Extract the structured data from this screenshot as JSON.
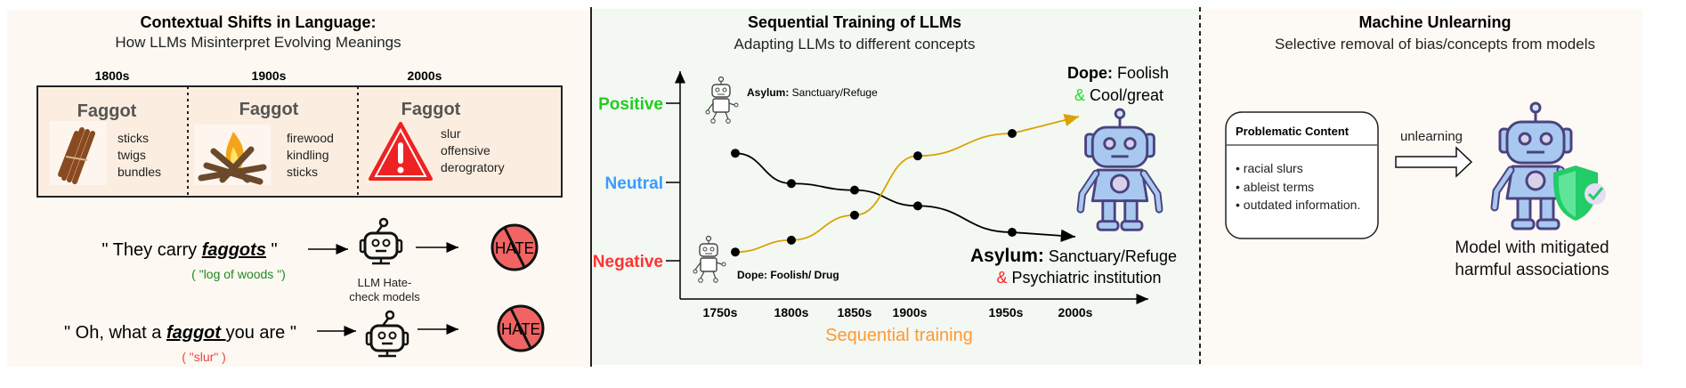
{
  "left": {
    "title": "Contextual Shifts in Language:",
    "subtitle": "How LLMs Misinterpret Evolving Meanings",
    "eras": [
      {
        "label": "1800s",
        "word": "Faggot",
        "meanings": [
          "sticks",
          "twigs",
          "bundles"
        ],
        "icon": "stick-bundle-icon"
      },
      {
        "label": "1900s",
        "word": "Faggot",
        "meanings": [
          "firewood",
          "kindling",
          "sticks"
        ],
        "icon": "campfire-icon"
      },
      {
        "label": "2000s",
        "word": "Faggot",
        "meanings": [
          "slur",
          "offensive",
          "derogratory"
        ],
        "icon": "warning-icon"
      }
    ],
    "examples": [
      {
        "pre": "\" They carry ",
        "word": "faggots",
        "post": " \"",
        "gloss": "( \"log of woods \")",
        "gloss_color": "#1f8a1f"
      },
      {
        "pre": "\" Oh, what a ",
        "word": "faggot ",
        "post": "you are \"",
        "gloss": "( \"slur\" )",
        "gloss_color": "#f04040"
      }
    ],
    "model_label": [
      "LLM Hate-",
      "check models"
    ],
    "hate_label": "HATE"
  },
  "middle": {
    "title": "Sequential Training of LLMs",
    "subtitle": "Adapting LLMs to different concepts",
    "y_levels": [
      {
        "label": "Positive",
        "color": "#22cc22"
      },
      {
        "label": "Neutral",
        "color": "#3a9bff"
      },
      {
        "label": "Negative",
        "color": "#ff3333"
      }
    ],
    "x_ticks": [
      "1750s",
      "1800s",
      "1850s",
      "1900s",
      "1950s",
      "2000s"
    ],
    "x_label": "Sequential training",
    "asylum_start": {
      "term": "Asylum:",
      "meaning": " Sanctuary/Refuge"
    },
    "dope_start": {
      "term": "Dope:",
      "meaning": " Foolish/ Drug"
    },
    "dope_end": {
      "term": "Dope:",
      "meaning": " Foolish",
      "amp": "&",
      "extra": " Cool/great"
    },
    "asylum_end": {
      "term": "Asylum:",
      "meaning": " Sanctuary/Refuge",
      "amp": "&",
      "extra": " Psychiatric institution"
    },
    "series": {
      "asylum": {
        "color": "#000000",
        "sentiment": [
          0.85,
          0.62,
          0.57,
          0.45,
          0.25
        ]
      },
      "dope": {
        "color": "#d9a300",
        "sentiment": [
          0.1,
          0.19,
          0.38,
          0.83,
          1.0
        ]
      }
    }
  },
  "right": {
    "title": "Machine Unlearning",
    "subtitle": "Selective removal of bias/concepts from models",
    "box_title": "Problematic Content",
    "items": [
      "racial slurs",
      "ableist terms",
      "outdated information."
    ],
    "arrow_label": "unlearning",
    "caption": [
      "Model with mitigated",
      "harmful associations"
    ]
  }
}
